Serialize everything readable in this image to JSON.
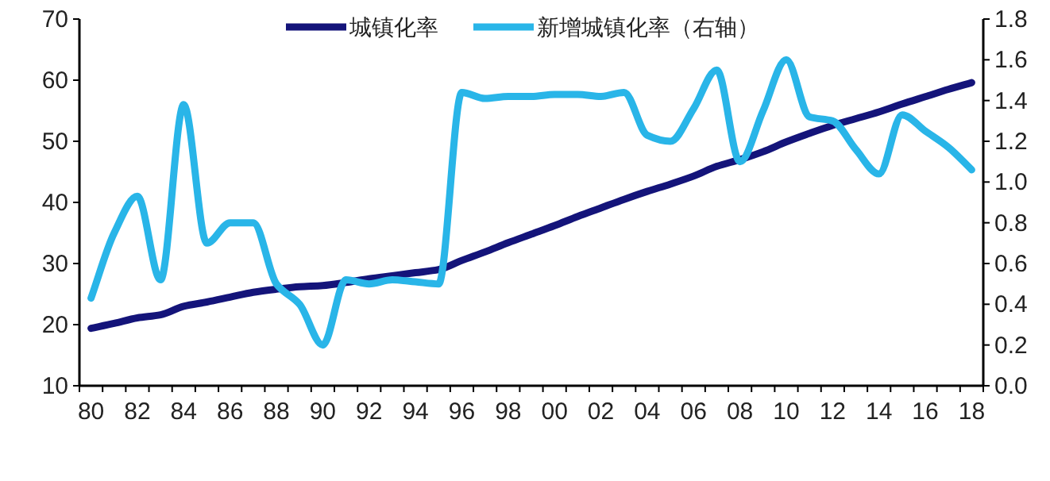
{
  "chart_data": {
    "type": "line",
    "categories": [
      "80",
      null,
      "82",
      null,
      "84",
      null,
      "86",
      null,
      "88",
      null,
      "90",
      null,
      "92",
      null,
      "94",
      null,
      "96",
      null,
      "98",
      null,
      "00",
      null,
      "02",
      null,
      "04",
      null,
      "06",
      null,
      "08",
      null,
      "10",
      null,
      "12",
      null,
      "14",
      null,
      "16",
      null,
      "18"
    ],
    "series": [
      {
        "name": "城镇化率",
        "color": "#14147a",
        "values": [
          19.4,
          20.2,
          21.1,
          21.6,
          23.0,
          23.7,
          24.5,
          25.3,
          25.8,
          26.2,
          26.4,
          26.9,
          27.5,
          28.0,
          28.5,
          29.0,
          30.5,
          31.9,
          33.4,
          34.8,
          36.2,
          37.7,
          39.1,
          40.5,
          41.8,
          43.0,
          44.3,
          45.9,
          47.0,
          48.3,
          49.9,
          51.3,
          52.6,
          53.7,
          54.8,
          56.1,
          57.3,
          58.5,
          59.6
        ]
      },
      {
        "name": "新增城镇化率（右轴）",
        "color": "#29b5e8",
        "axis": "y2",
        "values": [
          0.43,
          0.75,
          0.93,
          0.52,
          1.38,
          0.7,
          0.8,
          0.8,
          0.5,
          0.4,
          0.2,
          0.52,
          0.5,
          0.52,
          0.51,
          0.5,
          1.44,
          1.41,
          1.42,
          1.42,
          1.43,
          1.43,
          1.42,
          1.44,
          1.23,
          1.2,
          1.36,
          1.55,
          1.1,
          1.35,
          1.6,
          1.32,
          1.3,
          1.16,
          1.04,
          1.33,
          1.25,
          1.17,
          1.06
        ]
      }
    ],
    "ylim": [
      10,
      70
    ],
    "yticks": [
      10,
      20,
      30,
      40,
      50,
      60,
      70
    ],
    "y2lim": [
      0,
      1.8
    ],
    "y2ticks": [
      {
        "value": 0,
        "label": "0.0"
      },
      0.2,
      0.4,
      0.6,
      0.8,
      {
        "value": 1,
        "label": "1.0"
      },
      1.2,
      1.4,
      1.6,
      1.8
    ],
    "legend": "top right",
    "grid": false,
    "marker": "none",
    "line_style": "solid"
  }
}
